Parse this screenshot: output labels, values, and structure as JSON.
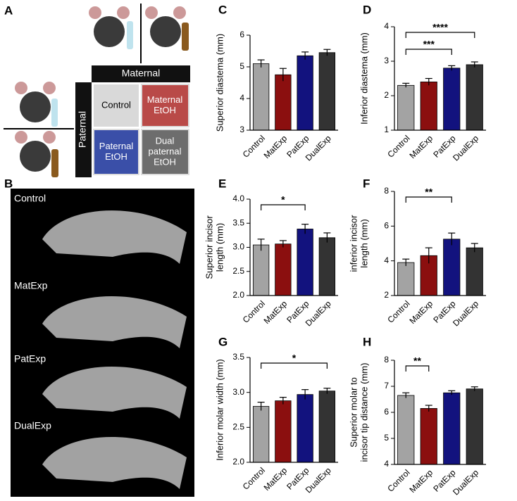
{
  "panel_a": {
    "letter": "A",
    "maternal": "Maternal",
    "paternal": "Paternal",
    "cells": [
      [
        "Control"
      ],
      [
        "Maternal",
        "EtOH"
      ],
      [
        "Paternal",
        "EtOH"
      ],
      [
        "Dual",
        "paternal",
        "EtOH"
      ]
    ]
  },
  "panel_b": {
    "letter": "B",
    "labels": [
      "Control",
      "MatExp",
      "PatExp",
      "DualExp"
    ]
  },
  "chart_data": [
    {
      "type": "bar",
      "panel": "C",
      "y_label": [
        "Superior diastema (mm)"
      ],
      "categories": [
        "Control",
        "MatExp",
        "PatExp",
        "DualExp"
      ],
      "colors": [
        "#a3a3a3",
        "#8b0f0f",
        "#12127e",
        "#333333"
      ],
      "values": [
        5.1,
        4.75,
        5.35,
        5.45
      ],
      "errors": [
        0.12,
        0.2,
        0.12,
        0.1
      ],
      "ylim": [
        3,
        6
      ],
      "yticks": [
        3,
        4,
        5,
        6
      ],
      "significance": []
    },
    {
      "type": "bar",
      "panel": "D",
      "y_label": [
        "Inferior diastema (mm)"
      ],
      "categories": [
        "Control",
        "MatExp",
        "PatExp",
        "DualExp"
      ],
      "colors": [
        "#a3a3a3",
        "#8b0f0f",
        "#12127e",
        "#333333"
      ],
      "values": [
        2.3,
        2.4,
        2.8,
        2.9
      ],
      "errors": [
        0.06,
        0.1,
        0.07,
        0.08
      ],
      "ylim": [
        1,
        4
      ],
      "yticks": [
        1,
        2,
        3,
        4
      ],
      "significance": [
        {
          "from": "Control",
          "to": "PatExp",
          "label": "***"
        },
        {
          "from": "Control",
          "to": "DualExp",
          "label": "****"
        }
      ]
    },
    {
      "type": "bar",
      "panel": "E",
      "y_label": [
        "Superior incisor",
        "length (mm)"
      ],
      "categories": [
        "Control",
        "MatExp",
        "PatExp",
        "DualExp"
      ],
      "colors": [
        "#a3a3a3",
        "#8b0f0f",
        "#12127e",
        "#333333"
      ],
      "values": [
        3.05,
        3.07,
        3.38,
        3.2
      ],
      "errors": [
        0.12,
        0.07,
        0.1,
        0.1
      ],
      "ylim": [
        2,
        4
      ],
      "yticks": [
        {
          "value": 2,
          "label": "2.0"
        },
        {
          "value": 2.5,
          "label": "2.5"
        },
        {
          "value": 3,
          "label": "3.0"
        },
        {
          "value": 3.5,
          "label": "3.5"
        },
        {
          "value": 4,
          "label": "4.0"
        }
      ],
      "significance": [
        {
          "from": "Control",
          "to": "PatExp",
          "label": "*"
        }
      ]
    },
    {
      "type": "bar",
      "panel": "F",
      "y_label": [
        "inferior incisor",
        "length (mm)"
      ],
      "categories": [
        "Control",
        "MatExp",
        "PatExp",
        "DualExp"
      ],
      "colors": [
        "#a3a3a3",
        "#8b0f0f",
        "#12127e",
        "#333333"
      ],
      "values": [
        3.9,
        4.3,
        5.25,
        4.75
      ],
      "errors": [
        0.2,
        0.45,
        0.35,
        0.25
      ],
      "ylim": [
        2,
        8
      ],
      "yticks": [
        2,
        4,
        6,
        8
      ],
      "significance": [
        {
          "from": "Control",
          "to": "PatExp",
          "label": "**"
        }
      ]
    },
    {
      "type": "bar",
      "panel": "G",
      "y_label": [
        "Inferior molar width (mm)"
      ],
      "categories": [
        "Control",
        "MatExp",
        "PatExp",
        "DualExp"
      ],
      "colors": [
        "#a3a3a3",
        "#8b0f0f",
        "#12127e",
        "#333333"
      ],
      "values": [
        2.8,
        2.88,
        2.97,
        3.02
      ],
      "errors": [
        0.06,
        0.05,
        0.07,
        0.04
      ],
      "ylim": [
        2,
        3.5
      ],
      "yticks": [
        {
          "value": 2,
          "label": "2.0"
        },
        {
          "value": 2.5,
          "label": "2.5"
        },
        {
          "value": 3,
          "label": "3.0"
        },
        {
          "value": 3.5,
          "label": "3.5"
        }
      ],
      "significance": [
        {
          "from": "Control",
          "to": "DualExp",
          "label": "*"
        }
      ]
    },
    {
      "type": "bar",
      "panel": "H",
      "y_label": [
        "Superior molar to",
        "incisor tip distance (mm)"
      ],
      "categories": [
        "Control",
        "MatExp",
        "PatExp",
        "DualExp"
      ],
      "colors": [
        "#a3a3a3",
        "#8b0f0f",
        "#12127e",
        "#333333"
      ],
      "values": [
        6.65,
        6.15,
        6.75,
        6.9
      ],
      "errors": [
        0.1,
        0.12,
        0.08,
        0.08
      ],
      "ylim": [
        4,
        8
      ],
      "yticks": [
        4,
        5,
        6,
        7,
        8
      ],
      "significance": [
        {
          "from": "Control",
          "to": "MatExp",
          "label": "**"
        }
      ]
    }
  ]
}
